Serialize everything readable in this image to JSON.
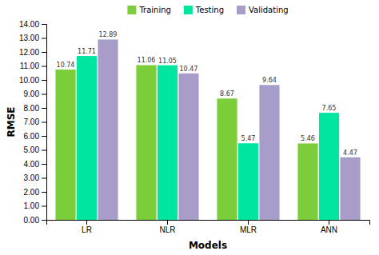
{
  "chart_data": {
    "type": "bar",
    "x_label": "Models",
    "y_label": "RMSE",
    "categories": [
      "LR",
      "NLR",
      "MLR",
      "ANN"
    ],
    "series": [
      {
        "name": "Training",
        "color": "#7CCD3A",
        "values": [
          10.74,
          11.06,
          8.67,
          5.46
        ]
      },
      {
        "name": "Testing",
        "color": "#00E5A0",
        "values": [
          11.71,
          11.05,
          5.47,
          7.65
        ]
      },
      {
        "name": "Validating",
        "color": "#A89DC8",
        "values": [
          12.89,
          10.47,
          9.64,
          4.47
        ]
      }
    ],
    "ylim": [
      0,
      14.0
    ],
    "yticks": [
      {
        "value": 0,
        "label": "0.00"
      },
      {
        "value": 1,
        "label": "1.00"
      },
      {
        "value": 2,
        "label": "2.00"
      },
      {
        "value": 3,
        "label": "3.00"
      },
      {
        "value": 4,
        "label": "4.00"
      },
      {
        "value": 5,
        "label": "5.00"
      },
      {
        "value": 6,
        "label": "6.00"
      },
      {
        "value": 7,
        "label": "7.00"
      },
      {
        "value": 8,
        "label": "8.00"
      },
      {
        "value": 9,
        "label": "9.00"
      },
      {
        "value": 10,
        "label": "10.00"
      },
      {
        "value": 11,
        "label": "11.00"
      },
      {
        "value": 12,
        "label": "12.00"
      },
      {
        "value": 13,
        "label": "13.00"
      },
      {
        "value": 14,
        "label": "14.00"
      }
    ],
    "grid": false,
    "legend": "top",
    "data_labels": true
  }
}
